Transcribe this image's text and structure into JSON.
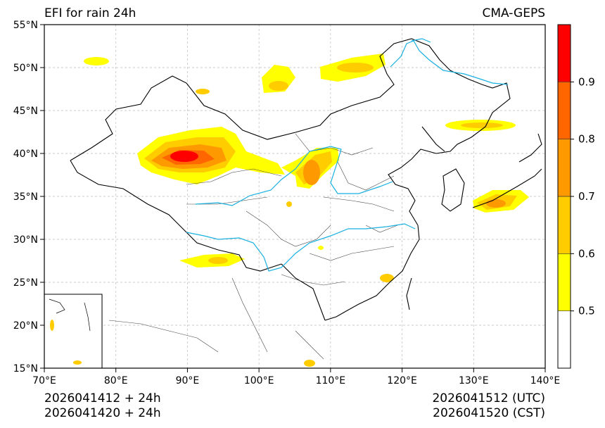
{
  "header": {
    "title_left": "EFI for rain 24h",
    "title_right": "CMA-GEPS"
  },
  "footer": {
    "left_line1": "2026041412 + 24h",
    "left_line2": "2026041420 + 24h",
    "right_line1": "2026041512 (UTC)",
    "right_line2": "2026041520 (CST)"
  },
  "map": {
    "extent": {
      "lon": [
        70,
        140
      ],
      "lat": [
        15,
        55
      ]
    },
    "lat_ticks": [
      {
        "value": 15,
        "label": "15°N"
      },
      {
        "value": 20,
        "label": "20°N"
      },
      {
        "value": 25,
        "label": "25°N"
      },
      {
        "value": 30,
        "label": "30°N"
      },
      {
        "value": 35,
        "label": "35°N"
      },
      {
        "value": 40,
        "label": "40°N"
      },
      {
        "value": 45,
        "label": "45°N"
      },
      {
        "value": 50,
        "label": "50°N"
      },
      {
        "value": 55,
        "label": "55°N"
      }
    ],
    "lon_ticks": [
      {
        "value": 70,
        "label": "70°E"
      },
      {
        "value": 80,
        "label": "80°E"
      },
      {
        "value": 90,
        "label": "90°E"
      },
      {
        "value": 100,
        "label": "100°E"
      },
      {
        "value": 110,
        "label": "110°E"
      },
      {
        "value": 120,
        "label": "120°E"
      },
      {
        "value": 130,
        "label": "130°E"
      },
      {
        "value": 140,
        "label": "140°E"
      }
    ],
    "grid": true,
    "colors": {
      "border": "#000000",
      "province": "#555555",
      "river": "#1ab0e0",
      "grid": "#bbbbbb"
    }
  },
  "colorbar": {
    "levels": [
      {
        "label": "0.5",
        "color": "#ffff00"
      },
      {
        "label": "0.6",
        "color": "#ffcc00"
      },
      {
        "label": "0.7",
        "color": "#ff9900"
      },
      {
        "label": "0.8",
        "color": "#ff6600"
      },
      {
        "label": "0.9",
        "color": "#ff0000"
      }
    ],
    "below_color": "#ffffff"
  }
}
